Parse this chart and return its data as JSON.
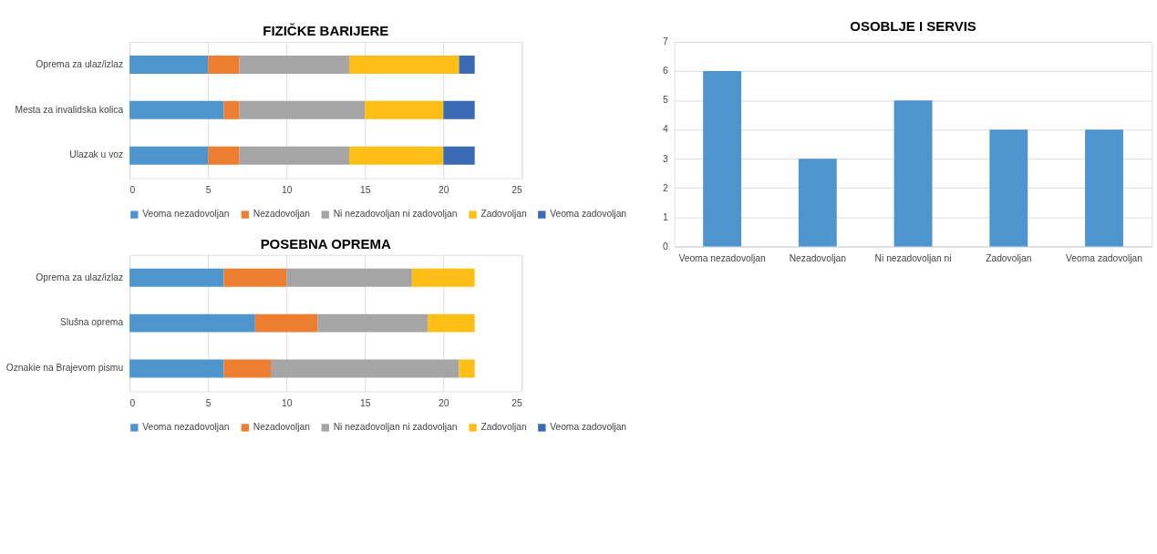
{
  "chart_data": [
    {
      "type": "bar",
      "title": "FIZIČKE BARIJERE",
      "orientation": "horizontal",
      "stacked": true,
      "categories": [
        "Oprema za ulaz/izlaz",
        "Mesta za invalidska kolica",
        "Ulazak u voz"
      ],
      "xlim": [
        0,
        25
      ],
      "xticks": [
        0,
        5,
        10,
        15,
        20,
        25
      ],
      "grid": "x",
      "legend": "bottom",
      "series": [
        {
          "name": "Veoma nezadovoljan",
          "color": "#4e95d0",
          "values": [
            5,
            6,
            5
          ]
        },
        {
          "name": "Nezadovoljan",
          "color": "#ed7d31",
          "values": [
            2,
            1,
            2
          ]
        },
        {
          "name": "Ni nezadovoljan ni zadovoljan",
          "color": "#a5a5a5",
          "values": [
            7,
            8,
            7
          ]
        },
        {
          "name": "Zadovoljan",
          "color": "#fdbf15",
          "values": [
            7,
            5,
            6
          ]
        },
        {
          "name": "Veoma zadovoljan",
          "color": "#3c6bb5",
          "values": [
            1,
            2,
            2
          ]
        }
      ]
    },
    {
      "type": "bar",
      "title": "POSEBNA OPREMA",
      "orientation": "horizontal",
      "stacked": true,
      "categories": [
        "Oprema za ulaz/izlaz",
        "Slušna oprema",
        "Oznakie na Brajevom pismu"
      ],
      "xlim": [
        0,
        25
      ],
      "xticks": [
        0,
        5,
        10,
        15,
        20,
        25
      ],
      "grid": "x",
      "legend": "bottom",
      "series": [
        {
          "name": "Veoma nezadovoljan",
          "color": "#4e95d0",
          "values": [
            6,
            8,
            6
          ]
        },
        {
          "name": "Nezadovoljan",
          "color": "#ed7d31",
          "values": [
            4,
            4,
            3
          ]
        },
        {
          "name": "Ni nezadovoljan ni zadovoljan",
          "color": "#a5a5a5",
          "values": [
            8,
            7,
            12
          ]
        },
        {
          "name": "Zadovoljan",
          "color": "#fdbf15",
          "values": [
            4,
            3,
            1
          ]
        },
        {
          "name": "Veoma zadovoljan",
          "color": "#3c6bb5",
          "values": [
            0,
            0,
            0
          ]
        }
      ]
    },
    {
      "type": "bar",
      "title": "OSOBLJE I SERVIS",
      "categories": [
        "Veoma nezadovoljan",
        "Nezadovoljan",
        "Ni nezadovoljan ni",
        "Zadovoljan",
        "Veoma zadovoljan"
      ],
      "ylim": [
        0,
        7
      ],
      "yticks": [
        0,
        1,
        2,
        3,
        4,
        5,
        6,
        7
      ],
      "grid": "y",
      "series": [
        {
          "color": "#4e95d0",
          "values": [
            6,
            3,
            5,
            4,
            4
          ]
        }
      ]
    }
  ]
}
